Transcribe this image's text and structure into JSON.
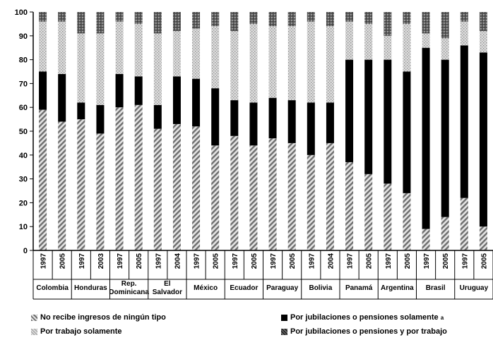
{
  "chart_data": {
    "type": "bar",
    "stacked": true,
    "ylim": [
      0,
      100
    ],
    "yticks": [
      0,
      10,
      20,
      30,
      40,
      50,
      60,
      70,
      80,
      90,
      100
    ],
    "ytick_labels": [
      "0",
      "10",
      "20",
      "30",
      "40",
      "50",
      "60",
      "70",
      "80",
      "90",
      "100"
    ],
    "groups": [
      {
        "country": "Colombia",
        "years": [
          "1997",
          "2005"
        ]
      },
      {
        "country": "Honduras",
        "years": [
          "1997",
          "2003"
        ]
      },
      {
        "country": "Rep. Dominicana",
        "country_lines": [
          "Rep.",
          "Dominicana"
        ],
        "years": [
          "1997",
          "2005"
        ]
      },
      {
        "country": "El Salvador",
        "country_lines": [
          "El",
          "Salvador"
        ],
        "years": [
          "1997",
          "2004"
        ]
      },
      {
        "country": "México",
        "years": [
          "1997",
          "2005"
        ]
      },
      {
        "country": "Ecuador",
        "years": [
          "1997",
          "2005"
        ]
      },
      {
        "country": "Paraguay",
        "years": [
          "1997",
          "2005"
        ]
      },
      {
        "country": "Bolivia",
        "years": [
          "1997",
          "2004"
        ]
      },
      {
        "country": "Panamá",
        "years": [
          "1997",
          "2005"
        ]
      },
      {
        "country": "Argentina",
        "years": [
          "1997",
          "2005"
        ]
      },
      {
        "country": "Brasil",
        "years": [
          "1997",
          "2005"
        ]
      },
      {
        "country": "Uruguay",
        "years": [
          "1997",
          "2005"
        ]
      }
    ],
    "series": [
      {
        "name": "No recibe ingresos de ningún tipo",
        "pattern": "hatch-diag",
        "values": [
          59,
          54,
          55,
          49,
          60,
          61,
          51,
          53,
          52,
          44,
          48,
          44,
          47,
          45,
          40,
          45,
          37,
          32,
          28,
          24,
          9,
          14,
          22,
          10
        ]
      },
      {
        "name": "Por jubilaciones o pensiones solamente",
        "superscript": "a",
        "pattern": "solid-black",
        "values": [
          16,
          20,
          7,
          12,
          14,
          12,
          10,
          20,
          20,
          24,
          15,
          18,
          17,
          18,
          22,
          17,
          43,
          48,
          52,
          51,
          76,
          66,
          64,
          73
        ]
      },
      {
        "name": "Por trabajo solamente",
        "pattern": "light-stipple",
        "values": [
          21,
          22,
          29,
          30,
          22,
          22,
          30,
          19,
          21,
          26,
          29,
          33,
          30,
          31,
          34,
          32,
          16,
          15,
          10,
          20,
          6,
          9,
          10,
          9
        ]
      },
      {
        "name": "Por jubilaciones o pensiones y por trabajo",
        "pattern": "dark-stipple",
        "values": [
          4,
          4,
          9,
          9,
          4,
          5,
          9,
          8,
          7,
          6,
          8,
          5,
          6,
          6,
          4,
          6,
          4,
          5,
          10,
          5,
          9,
          11,
          4,
          8
        ]
      }
    ]
  }
}
